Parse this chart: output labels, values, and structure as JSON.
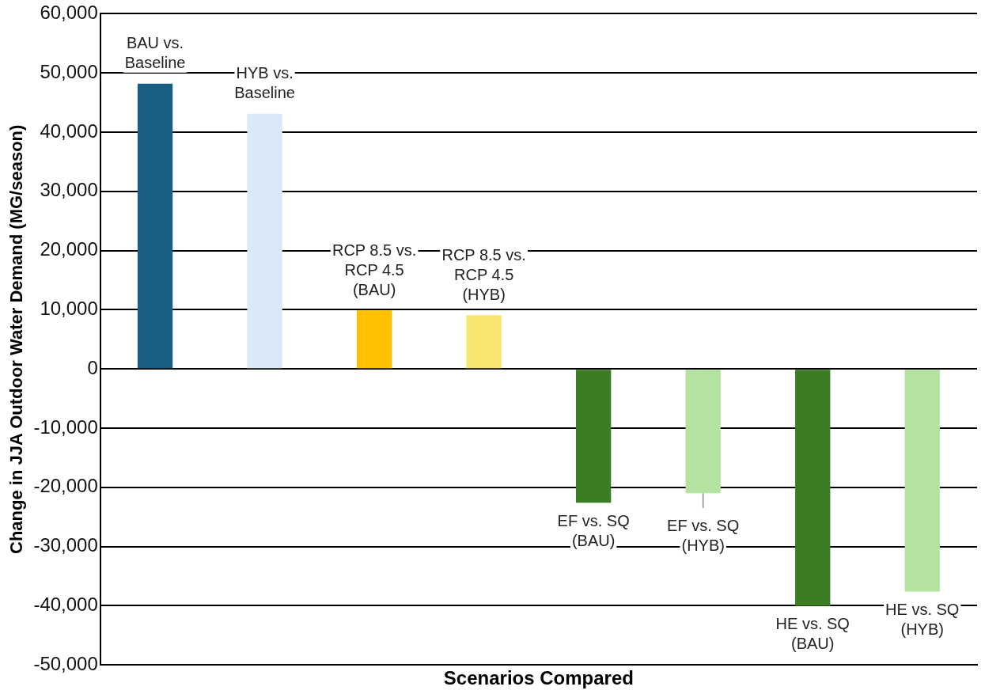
{
  "chart_data": {
    "type": "bar",
    "xlabel": "Scenarios Compared",
    "ylabel": "Change in JJA Outdoor Water Demand (MG/season)",
    "categories": [
      "BAU vs. Baseline",
      "HYB vs. Baseline",
      "RCP 8.5 vs. RCP 4.5 (BAU)",
      "RCP 8.5 vs. RCP 4.5 (HYB)",
      "EF vs. SQ (BAU)",
      "EF vs. SQ (HYB)",
      "HE vs. SQ (BAU)",
      "HE vs. SQ (HYB)"
    ],
    "values": [
      48200,
      43100,
      9900,
      9100,
      -22600,
      -21000,
      -40000,
      -37600
    ],
    "colors": [
      "#195e83",
      "#dae9f7",
      "#ffc000",
      "#fae471",
      "#3a7d22",
      "#b4e3a0",
      "#3a7d22",
      "#b4e3a0"
    ],
    "errors": [
      null,
      null,
      null,
      null,
      null,
      [
        -23500,
        -21000
      ],
      null,
      null
    ],
    "ylim": [
      -50000,
      60000
    ],
    "yticks": [
      {
        "value": -50000,
        "label": "-50,000"
      },
      {
        "value": -40000,
        "label": "-40,000"
      },
      {
        "value": -30000,
        "label": "-30,000"
      },
      {
        "value": -20000,
        "label": "-20,000"
      },
      {
        "value": -10000,
        "label": "-10,000"
      },
      0,
      {
        "value": 10000,
        "label": "10,000"
      },
      {
        "value": 20000,
        "label": "20,000"
      },
      {
        "value": 30000,
        "label": "30,000"
      },
      {
        "value": 40000,
        "label": "40,000"
      },
      {
        "value": 50000,
        "label": "50,000"
      },
      {
        "value": 60000,
        "label": "60,000"
      }
    ],
    "grid": "y",
    "legend": false,
    "tick_labels": "y"
  }
}
